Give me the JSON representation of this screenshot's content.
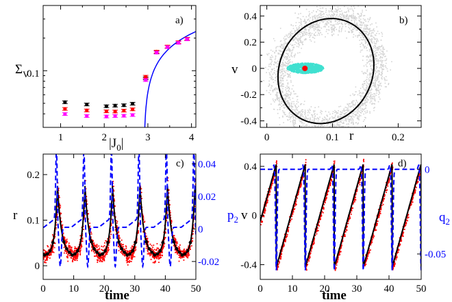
{
  "chart_data": [
    {
      "panel_label": "a)",
      "type": "scatter",
      "xlabel": "|J0|",
      "ylabel": "Σv",
      "xlim": [
        0.6,
        4.1
      ],
      "ylim_log": [
        0.03,
        0.4
      ],
      "xticks": [
        1,
        2,
        3,
        4
      ],
      "yticks": [
        0.1
      ],
      "series": [
        {
          "color": "#000000",
          "x": [
            1.1,
            1.6,
            2.05,
            2.25,
            2.45,
            2.65,
            2.95,
            3.2,
            3.45,
            3.7,
            3.9
          ],
          "y": [
            0.0512,
            0.0488,
            0.047,
            0.0476,
            0.048,
            0.0496,
            0.085,
            0.148,
            0.166,
            0.182,
            0.196
          ]
        },
        {
          "color": "#ff0000",
          "x": [
            1.1,
            1.6,
            2.05,
            2.25,
            2.45,
            2.65,
            2.95,
            3.2,
            3.45,
            3.7,
            3.9
          ],
          "y": [
            0.0444,
            0.043,
            0.0422,
            0.042,
            0.0428,
            0.044,
            0.088,
            0.15,
            0.167,
            0.183,
            0.197
          ]
        },
        {
          "color": "#ff00ff",
          "x": [
            1.1,
            1.6,
            2.05,
            2.25,
            2.45,
            2.65,
            2.95,
            3.2,
            3.45,
            3.7,
            3.9
          ],
          "y": [
            0.0398,
            0.0382,
            0.0378,
            0.0382,
            0.0384,
            0.039,
            0.082,
            0.147,
            0.165,
            0.181,
            0.195
          ]
        }
      ],
      "theory_curve": {
        "color": "#0000ff",
        "x0": 2.91,
        "y_at_x4": 0.22
      }
    },
    {
      "panel_label": "b)",
      "type": "scatter",
      "xlabel": "r",
      "ylabel": "v",
      "xlim": [
        -0.01,
        0.235
      ],
      "ylim": [
        -0.45,
        0.48
      ],
      "xticks": [
        0,
        0.1,
        0.2
      ],
      "yticks": [
        -0.4,
        -0.2,
        0,
        0.2,
        0.4
      ],
      "cloud_gray": {
        "color": "#d3d3d3"
      },
      "cloud_cyan": {
        "color": "#40e0d0",
        "center": [
          0.058,
          0.005
        ],
        "rx": 0.028,
        "ry": 0.055
      },
      "fixed_point": {
        "color": "#ff0000",
        "r": 0.058,
        "v": 0.0
      },
      "orbit": {
        "color": "#000000",
        "r_left": 0.018,
        "r_right": 0.162,
        "v_top": 0.38,
        "v_bottom": -0.42
      }
    },
    {
      "panel_label": "c)",
      "type": "line",
      "xlabel": "time",
      "ylabel": "r",
      "ylabel_right": "",
      "xlim": [
        0,
        50
      ],
      "ylim": [
        -0.03,
        0.245
      ],
      "ylim_right": [
        -0.031,
        0.046
      ],
      "xticks": [
        0,
        10,
        20,
        30,
        40,
        50
      ],
      "yticks": [
        0,
        0.1,
        0.2
      ],
      "yticks_right": [
        -0.02,
        0,
        0.02,
        0.04
      ],
      "period": 9.0,
      "peak_times": [
        4.7,
        13.7,
        22.7,
        31.7,
        40.7
      ],
      "r_min": 0.022,
      "r_peak": 0.175,
      "right_baseline": 0.001,
      "right_max": 0.042,
      "right_min": -0.024
    },
    {
      "panel_label": "d)",
      "type": "line",
      "xlabel": "time",
      "ylabel": "p2 v",
      "ylabel_right": "q2",
      "xlim": [
        0,
        50
      ],
      "ylim": [
        -0.52,
        0.5
      ],
      "ylim_right": [
        -0.065,
        0.009
      ],
      "xticks": [
        0,
        10,
        20,
        30,
        40,
        50
      ],
      "yticks": [
        -0.4,
        0,
        0.4
      ],
      "yticks_right": [
        -0.05,
        0
      ],
      "period": 9.0,
      "reset_times": [
        5.0,
        14.0,
        23.0,
        32.0,
        41.0
      ],
      "v_min": -0.42,
      "v_max": 0.42,
      "right_baseline": 0.0,
      "right_min": -0.06
    }
  ],
  "labels": {
    "a_panel": "a)",
    "a_xlabel_main": "|J",
    "a_xlabel_sub": "0",
    "a_xlabel_end": "|",
    "a_ylabel_main": "Σ",
    "a_ylabel_sub": "V",
    "a_ytick": "0.1",
    "b_panel": "b)",
    "b_xlabel": "r",
    "b_ylabel": "v",
    "c_panel": "c)",
    "c_xlabel": "time",
    "c_ylabel": "r",
    "d_panel": "d)",
    "d_xlabel": "time",
    "d_ylabel_p": "p",
    "d_ylabel_p_sub": "2",
    "d_ylabel_v": "v",
    "d_ylabel_q": "q",
    "d_ylabel_q_sub": "2"
  }
}
